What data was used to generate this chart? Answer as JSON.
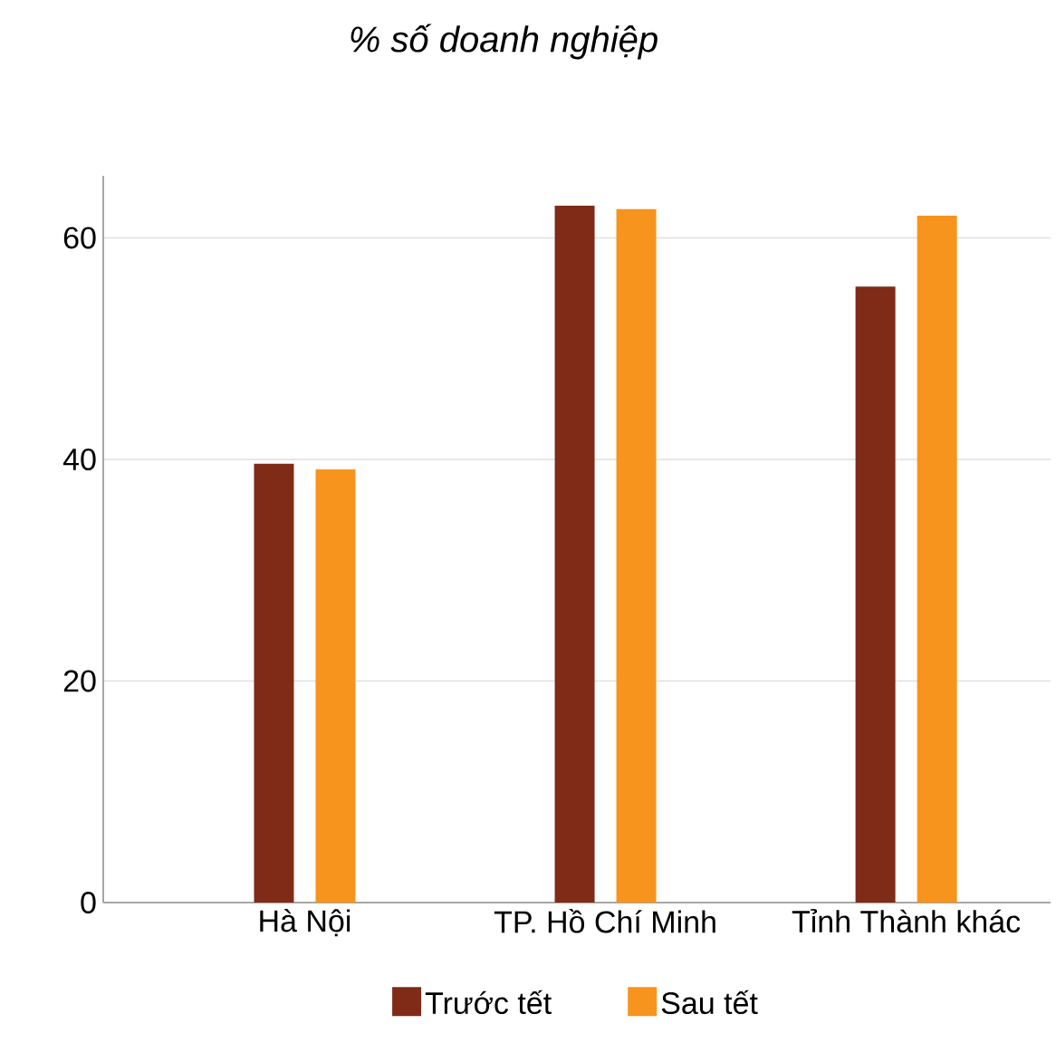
{
  "chart_data": {
    "type": "bar",
    "title": "*% số doanh nghiệp*",
    "categories": [
      "Hà Nội",
      "TP. Hồ Chí Minh",
      "Tỉnh Thành khác"
    ],
    "series": [
      {
        "name": "Trước tết",
        "color": "#7f2b17",
        "values": [
          39.6,
          62.9,
          55.6
        ]
      },
      {
        "name": "Sau tết",
        "color": "#f7941d",
        "values": [
          39.1,
          62.6,
          62.0
        ]
      }
    ],
    "ylim": [
      0,
      65.6
    ],
    "yticks": [
      0,
      20,
      40,
      60
    ],
    "grid": "y",
    "legend": "bottom"
  }
}
